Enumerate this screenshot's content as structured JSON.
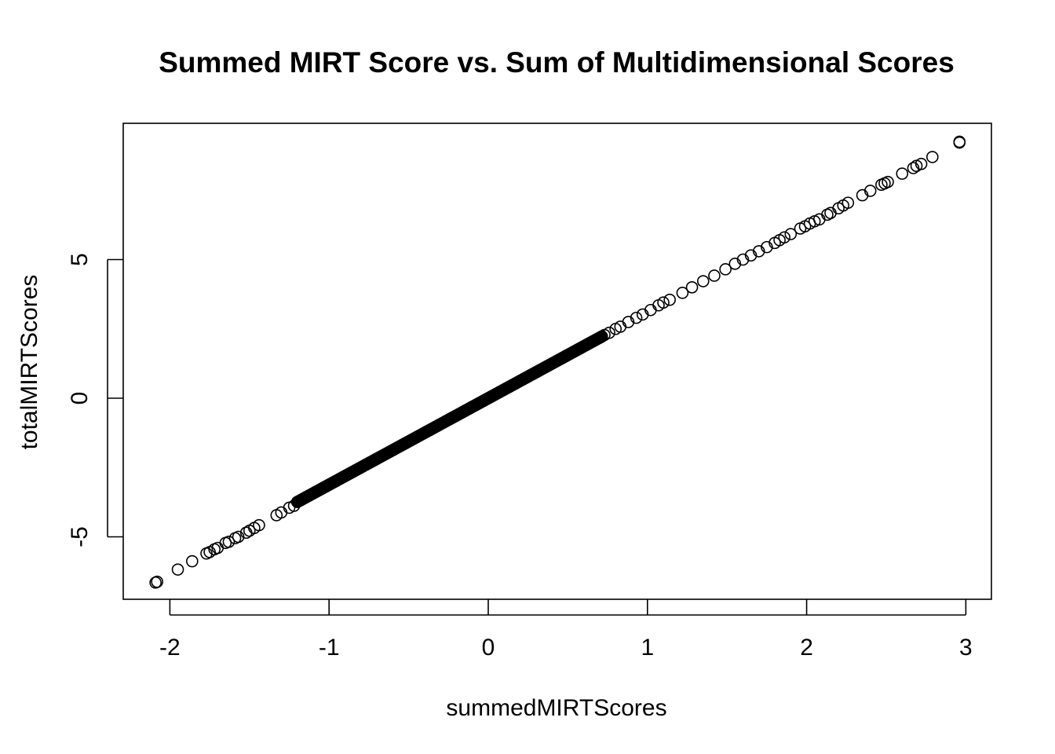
{
  "chart_data": {
    "type": "scatter",
    "title": "Summed MIRT Score vs. Sum of Multidimensional Scores",
    "xlabel": "summedMIRTScores",
    "ylabel": "totalMIRTScores",
    "xlim": [
      -2.3,
      3.16
    ],
    "ylim": [
      -7.2,
      9.9
    ],
    "x_ticks": [
      -2,
      -1,
      0,
      1,
      2,
      3
    ],
    "x_tick_labels": [
      "-2",
      "-1",
      "0",
      "1",
      "2",
      "3"
    ],
    "y_ticks": [
      -5,
      0,
      5
    ],
    "y_tick_labels": [
      "-5",
      "0",
      "5"
    ],
    "grid": false,
    "legend": "none",
    "relationship": "y ≈ 3.1 * x (points lie on a straight line)",
    "slope": 3.12,
    "intercept": 0.0,
    "x_min": -2.09,
    "x_max": 2.96,
    "series": [
      {
        "marker": "open-circle",
        "color": "#000000",
        "outlier_points": [
          [
            -2.09,
            -6.65
          ],
          [
            -2.08,
            -6.62
          ],
          [
            -1.95,
            -6.18
          ],
          [
            -1.86,
            -5.88
          ],
          [
            -1.77,
            -5.6
          ],
          [
            -1.75,
            -5.55
          ],
          [
            -1.72,
            -5.45
          ],
          [
            -1.7,
            -5.4
          ],
          [
            -1.65,
            -5.22
          ],
          [
            -1.63,
            -5.18
          ],
          [
            -1.59,
            -5.05
          ],
          [
            -1.57,
            -5.0
          ],
          [
            -1.52,
            -4.85
          ],
          [
            -1.5,
            -4.78
          ],
          [
            -1.47,
            -4.68
          ],
          [
            -1.44,
            -4.58
          ],
          [
            -1.33,
            -4.22
          ],
          [
            -1.3,
            -4.12
          ],
          [
            -1.25,
            -3.95
          ],
          [
            -1.22,
            -3.88
          ],
          [
            0.73,
            2.28
          ],
          [
            0.76,
            2.36
          ],
          [
            0.8,
            2.5
          ],
          [
            0.83,
            2.58
          ],
          [
            0.88,
            2.75
          ],
          [
            0.93,
            2.9
          ],
          [
            0.97,
            3.02
          ],
          [
            1.02,
            3.18
          ],
          [
            1.07,
            3.35
          ],
          [
            1.1,
            3.45
          ],
          [
            1.14,
            3.55
          ],
          [
            1.22,
            3.8
          ],
          [
            1.28,
            4.0
          ],
          [
            1.35,
            4.22
          ],
          [
            1.42,
            4.42
          ],
          [
            1.49,
            4.65
          ],
          [
            1.55,
            4.85
          ],
          [
            1.6,
            5.0
          ],
          [
            1.65,
            5.15
          ],
          [
            1.7,
            5.3
          ],
          [
            1.75,
            5.45
          ],
          [
            1.8,
            5.6
          ],
          [
            1.83,
            5.7
          ],
          [
            1.86,
            5.8
          ],
          [
            1.9,
            5.92
          ],
          [
            1.96,
            6.12
          ],
          [
            1.99,
            6.2
          ],
          [
            2.02,
            6.3
          ],
          [
            2.05,
            6.38
          ],
          [
            2.08,
            6.45
          ],
          [
            2.13,
            6.62
          ],
          [
            2.15,
            6.68
          ],
          [
            2.2,
            6.85
          ],
          [
            2.23,
            6.95
          ],
          [
            2.26,
            7.05
          ],
          [
            2.35,
            7.32
          ],
          [
            2.4,
            7.48
          ],
          [
            2.47,
            7.7
          ],
          [
            2.49,
            7.75
          ],
          [
            2.51,
            7.8
          ],
          [
            2.6,
            8.1
          ],
          [
            2.67,
            8.3
          ],
          [
            2.69,
            8.38
          ],
          [
            2.72,
            8.45
          ],
          [
            2.79,
            8.7
          ],
          [
            2.96,
            9.22
          ],
          [
            2.96,
            9.25
          ]
        ]
      }
    ]
  }
}
